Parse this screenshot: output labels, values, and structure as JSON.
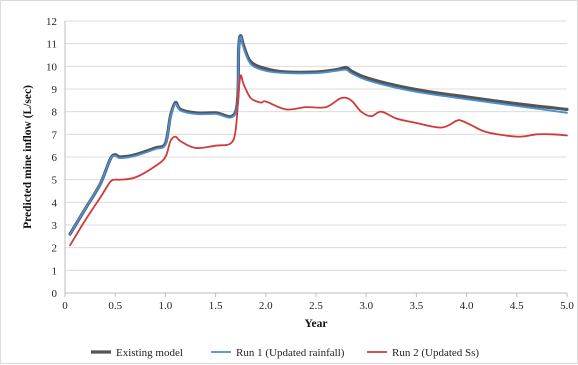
{
  "chart_data": {
    "type": "line",
    "title": "",
    "xlabel": "Year",
    "ylabel": "Predicted mine inflow (L/sec)",
    "xlim": [
      0,
      5
    ],
    "ylim": [
      0,
      12
    ],
    "x_ticks": [
      "0",
      "0.5",
      "1.0",
      "1.5",
      "2.0",
      "2.5",
      "3.0",
      "3.5",
      "4.0",
      "4.5",
      "5.0"
    ],
    "y_ticks": [
      "0",
      "1",
      "2",
      "3",
      "4",
      "5",
      "6",
      "7",
      "8",
      "9",
      "10",
      "11",
      "12"
    ],
    "grid": "horizontal",
    "legend_position": "bottom",
    "series": [
      {
        "name": "Existing model",
        "color": "#555555",
        "x": [
          0.05,
          0.2,
          0.35,
          0.45,
          0.5,
          0.55,
          0.7,
          0.9,
          1.0,
          1.05,
          1.1,
          1.15,
          1.3,
          1.5,
          1.7,
          1.73,
          1.75,
          1.78,
          1.85,
          2.0,
          2.2,
          2.5,
          2.7,
          2.8,
          2.85,
          3.0,
          3.3,
          3.6,
          4.0,
          4.5,
          5.0
        ],
        "y": [
          2.6,
          3.7,
          4.8,
          5.9,
          6.1,
          6.0,
          6.1,
          6.4,
          6.6,
          7.8,
          8.4,
          8.1,
          7.95,
          7.95,
          8.0,
          10.8,
          11.35,
          10.9,
          10.2,
          9.9,
          9.75,
          9.75,
          9.85,
          9.95,
          9.8,
          9.5,
          9.15,
          8.9,
          8.65,
          8.35,
          8.1
        ]
      },
      {
        "name": "Run 1 (Updated rainfall)",
        "color": "#4a8fd4",
        "x": [
          0.05,
          0.2,
          0.35,
          0.45,
          0.5,
          0.55,
          0.7,
          0.9,
          1.0,
          1.05,
          1.1,
          1.15,
          1.3,
          1.5,
          1.7,
          1.73,
          1.75,
          1.78,
          1.85,
          2.0,
          2.2,
          2.5,
          2.7,
          2.8,
          2.85,
          3.0,
          3.3,
          3.6,
          4.0,
          4.5,
          5.0
        ],
        "y": [
          2.6,
          3.7,
          4.8,
          5.9,
          6.05,
          5.95,
          6.05,
          6.35,
          6.55,
          7.75,
          8.35,
          8.05,
          7.9,
          7.9,
          7.95,
          10.7,
          11.3,
          10.8,
          10.1,
          9.8,
          9.7,
          9.7,
          9.8,
          9.85,
          9.7,
          9.4,
          9.05,
          8.8,
          8.55,
          8.25,
          7.95
        ]
      },
      {
        "name": "Run 2 (Updated Ss)",
        "color": "#d03a3a",
        "x": [
          0.05,
          0.2,
          0.35,
          0.45,
          0.5,
          0.55,
          0.7,
          0.9,
          1.0,
          1.05,
          1.1,
          1.15,
          1.3,
          1.5,
          1.65,
          1.7,
          1.73,
          1.75,
          1.78,
          1.85,
          1.95,
          2.0,
          2.2,
          2.4,
          2.6,
          2.75,
          2.85,
          2.95,
          3.05,
          3.15,
          3.3,
          3.5,
          3.75,
          3.9,
          3.95,
          4.05,
          4.2,
          4.5,
          4.7,
          4.85,
          5.0
        ],
        "y": [
          2.1,
          3.2,
          4.2,
          4.9,
          5.0,
          5.0,
          5.1,
          5.6,
          6.0,
          6.7,
          6.9,
          6.7,
          6.4,
          6.5,
          6.6,
          7.2,
          8.9,
          9.6,
          9.2,
          8.6,
          8.4,
          8.45,
          8.1,
          8.2,
          8.2,
          8.6,
          8.5,
          8.0,
          7.8,
          8.0,
          7.7,
          7.5,
          7.3,
          7.6,
          7.6,
          7.4,
          7.1,
          6.9,
          7.0,
          7.0,
          6.95
        ]
      }
    ]
  }
}
